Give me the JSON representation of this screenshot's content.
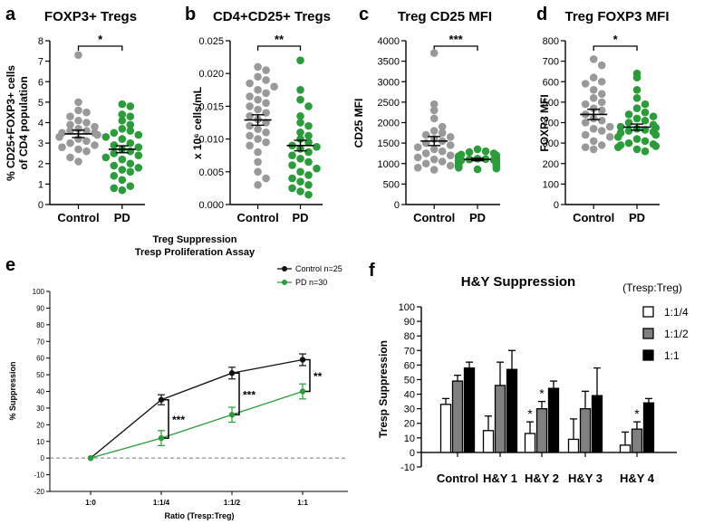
{
  "panels": {
    "a": {
      "letter": "a",
      "title": "FOXP3+ Tregs",
      "ylabel_line1": "% CD25+FOXP3+ cells",
      "ylabel_line2": "of CD4 population",
      "categories": [
        "Control",
        "PD"
      ],
      "yticks": [
        "0",
        "1",
        "2",
        "3",
        "4",
        "5",
        "6",
        "7",
        "8"
      ],
      "sig": "*"
    },
    "b": {
      "letter": "b",
      "title": "CD4+CD25+ Tregs",
      "ylabel": "x 10⁶ cells/mL",
      "categories": [
        "Control",
        "PD"
      ],
      "yticks": [
        "0.000",
        "0.005",
        "0.010",
        "0.015",
        "0.020",
        "0.025"
      ],
      "sig": "**"
    },
    "c": {
      "letter": "c",
      "title": "Treg CD25 MFI",
      "ylabel": "CD25 MFI",
      "categories": [
        "Control",
        "PD"
      ],
      "yticks": [
        "0",
        "500",
        "1000",
        "1500",
        "2000",
        "2500",
        "3000",
        "3500",
        "4000"
      ],
      "sig": "***"
    },
    "d": {
      "letter": "d",
      "title": "Treg FOXP3 MFI",
      "ylabel": "FOXP3 MFI",
      "categories": [
        "Control",
        "PD"
      ],
      "yticks": [
        "0",
        "100",
        "200",
        "300",
        "400",
        "500",
        "600",
        "700",
        "800"
      ],
      "sig": "*"
    },
    "e": {
      "letter": "e",
      "title_line1": "Treg Suppression",
      "title_line2": "Tresp Proliferation Assay",
      "ylabel": "% Suppression",
      "xlabel": "Ratio (Tresp:Treg)",
      "xticks": [
        "1:0",
        "1:1/4",
        "1:1/2",
        "1:1"
      ],
      "yticks": [
        "-20",
        "-10",
        "0",
        "10",
        "20",
        "30",
        "40",
        "50",
        "60",
        "70",
        "80",
        "90",
        "100"
      ],
      "legend": [
        "Control n=25",
        "PD    n=30"
      ],
      "sig": [
        "***",
        "***",
        "**"
      ]
    },
    "f": {
      "letter": "f",
      "title": "H&Y Suppression",
      "ylabel": "Tresp Suppression",
      "legend_title": "(Tresp:Treg)",
      "legend": [
        "1:1/4",
        "1:1/2",
        "1:1"
      ],
      "categories": [
        "Control",
        "H&Y 1",
        "H&Y 2",
        "H&Y 3",
        "H&Y 4"
      ],
      "yticks": [
        "-10",
        "0",
        "10",
        "20",
        "30",
        "40",
        "50",
        "60",
        "70",
        "80",
        "90",
        "100"
      ],
      "sig": "*"
    }
  },
  "chart_data": [
    {
      "type": "scatter",
      "panel": "a",
      "ylim": [
        0,
        8
      ],
      "groups": [
        {
          "category": "Control",
          "mean": 3.45,
          "sem": 0.18,
          "color": "#999999",
          "values": [
            7.3,
            5.0,
            4.6,
            4.5,
            4.3,
            4.1,
            4.0,
            3.9,
            3.8,
            3.7,
            3.6,
            3.5,
            3.5,
            3.4,
            3.3,
            3.2,
            3.1,
            3.0,
            2.9,
            2.8,
            2.7,
            2.6,
            2.3,
            2.1,
            3.6
          ]
        },
        {
          "category": "PD",
          "mean": 2.7,
          "sem": 0.17,
          "color": "#2a9d3a",
          "values": [
            4.9,
            4.8,
            4.4,
            4.3,
            4.1,
            3.9,
            3.7,
            3.6,
            3.5,
            3.4,
            3.3,
            3.2,
            3.0,
            2.9,
            2.8,
            2.7,
            2.6,
            2.5,
            2.4,
            2.3,
            2.2,
            2.0,
            1.9,
            1.8,
            1.7,
            1.6,
            1.4,
            1.2,
            0.9,
            0.8,
            0.7
          ]
        }
      ]
    },
    {
      "type": "scatter",
      "panel": "b",
      "ylim": [
        0,
        0.025
      ],
      "groups": [
        {
          "category": "Control",
          "mean": 0.0129,
          "sem": 0.0008,
          "color": "#999999",
          "values": [
            0.021,
            0.0205,
            0.0195,
            0.019,
            0.0185,
            0.018,
            0.0175,
            0.017,
            0.0165,
            0.016,
            0.0155,
            0.015,
            0.0145,
            0.014,
            0.0135,
            0.013,
            0.0125,
            0.012,
            0.0115,
            0.011,
            0.0105,
            0.01,
            0.0095,
            0.009,
            0.008,
            0.0065,
            0.005,
            0.004,
            0.003
          ]
        },
        {
          "category": "PD",
          "mean": 0.009,
          "sem": 0.0008,
          "color": "#2a9d3a",
          "values": [
            0.022,
            0.0175,
            0.016,
            0.015,
            0.0135,
            0.0125,
            0.012,
            0.011,
            0.0105,
            0.01,
            0.0095,
            0.009,
            0.0088,
            0.0085,
            0.008,
            0.0075,
            0.007,
            0.0065,
            0.006,
            0.0055,
            0.005,
            0.0045,
            0.004,
            0.0035,
            0.003,
            0.0025,
            0.002,
            0.0015
          ]
        }
      ]
    },
    {
      "type": "scatter",
      "panel": "c",
      "ylim": [
        0,
        4000
      ],
      "groups": [
        {
          "category": "Control",
          "mean": 1550,
          "sem": 110,
          "color": "#999999",
          "values": [
            3700,
            2450,
            2300,
            2100,
            1900,
            1800,
            1750,
            1700,
            1650,
            1600,
            1550,
            1500,
            1450,
            1400,
            1350,
            1300,
            1250,
            1200,
            1150,
            1100,
            1050,
            1000,
            950,
            900,
            850
          ]
        },
        {
          "category": "PD",
          "mean": 1100,
          "sem": 30,
          "color": "#2a9d3a",
          "values": [
            1350,
            1300,
            1280,
            1250,
            1220,
            1200,
            1180,
            1160,
            1150,
            1140,
            1130,
            1120,
            1110,
            1100,
            1090,
            1080,
            1070,
            1060,
            1050,
            1040,
            1030,
            1020,
            1000,
            980,
            960,
            940,
            920,
            900,
            880,
            860
          ]
        }
      ]
    },
    {
      "type": "scatter",
      "panel": "d",
      "ylim": [
        0,
        800
      ],
      "groups": [
        {
          "category": "Control",
          "mean": 440,
          "sem": 25,
          "color": "#999999",
          "values": [
            710,
            680,
            600,
            590,
            560,
            540,
            520,
            500,
            490,
            470,
            460,
            440,
            420,
            410,
            400,
            380,
            370,
            360,
            340,
            330,
            310,
            290,
            280,
            270,
            620
          ]
        },
        {
          "category": "PD",
          "mean": 378,
          "sem": 15,
          "color": "#2a9d3a",
          "values": [
            640,
            620,
            560,
            520,
            490,
            470,
            450,
            440,
            430,
            420,
            410,
            400,
            390,
            380,
            375,
            370,
            365,
            360,
            355,
            350,
            340,
            330,
            320,
            310,
            300,
            295,
            290,
            285,
            280,
            270,
            260
          ]
        }
      ]
    },
    {
      "type": "line",
      "panel": "e",
      "x": [
        "1:0",
        "1:1/4",
        "1:1/2",
        "1:1"
      ],
      "ylim": [
        -20,
        100
      ],
      "series": [
        {
          "name": "Control n=25",
          "color": "#111111",
          "values": [
            0,
            35,
            51,
            59
          ],
          "err": [
            0,
            3,
            3.5,
            3.5
          ]
        },
        {
          "name": "PD    n=30",
          "color": "#2a9d3a",
          "values": [
            0,
            12,
            26,
            40
          ],
          "err": [
            0,
            4.5,
            4.5,
            4.5
          ]
        }
      ]
    },
    {
      "type": "bar",
      "panel": "f",
      "categories": [
        "Control",
        "H&Y 1",
        "H&Y 2",
        "H&Y 3",
        "H&Y 4"
      ],
      "ylim": [
        -10,
        100
      ],
      "series": [
        {
          "name": "1:1/4",
          "color": "#ffffff",
          "values": [
            33,
            15,
            13,
            9,
            5
          ],
          "err": [
            4,
            10,
            8,
            14,
            9
          ]
        },
        {
          "name": "1:1/2",
          "color": "#808080",
          "values": [
            49,
            46,
            30,
            30,
            16
          ],
          "err": [
            4,
            16,
            5,
            12,
            5
          ]
        },
        {
          "name": "1:1",
          "color": "#000000",
          "values": [
            58,
            57,
            44,
            39,
            34
          ],
          "err": [
            4,
            13,
            5,
            19,
            3
          ]
        }
      ],
      "significant": [
        [
          2,
          0
        ],
        [
          2,
          1
        ],
        [
          4,
          1
        ]
      ]
    }
  ]
}
